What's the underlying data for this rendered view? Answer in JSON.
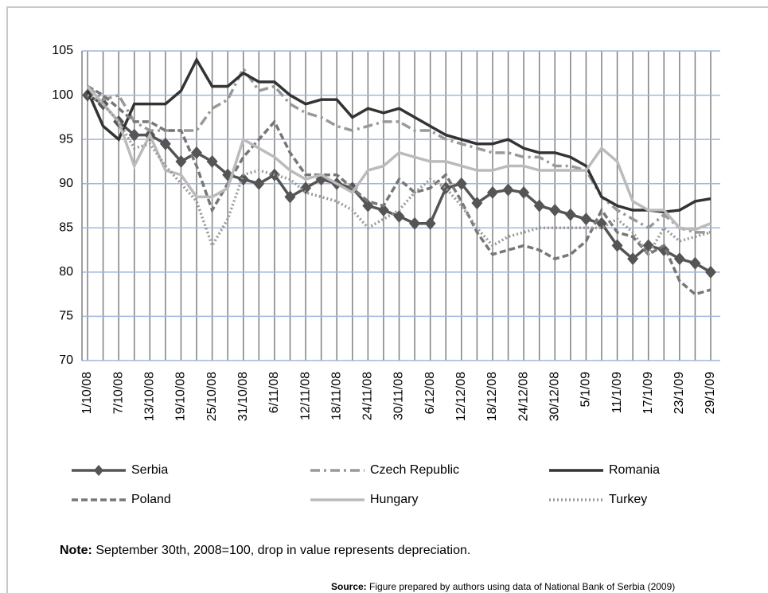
{
  "chart_data": {
    "type": "line",
    "categories": [
      "1/10/08",
      null,
      "7/10/08",
      null,
      "13/10/08",
      null,
      "19/10/08",
      null,
      "25/10/08",
      null,
      "31/10/08",
      null,
      "6/11/08",
      null,
      "12/11/08",
      null,
      "18/11/08",
      null,
      "24/11/08",
      null,
      "30/11/08",
      null,
      "6/12/08",
      null,
      "12/12/08",
      null,
      "18/12/08",
      null,
      "24/12/08",
      null,
      "30/12/08",
      null,
      "5/1/09",
      null,
      "11/1/09",
      null,
      "17/1/09",
      null,
      "23/1/09",
      null,
      "29/1/09"
    ],
    "series": [
      {
        "name": "Serbia",
        "color": "#555555",
        "line_style": "solid",
        "marker": "diamond",
        "values": [
          100,
          99,
          97,
          95.5,
          95.5,
          94.5,
          92.5,
          93.5,
          92.5,
          91,
          90.5,
          90,
          91,
          88.5,
          89.5,
          90.5,
          90,
          89.5,
          87.5,
          87,
          86.3,
          85.5,
          85.5,
          89.5,
          90,
          87.8,
          89,
          89.3,
          89,
          87.5,
          87,
          86.5,
          86,
          85.5,
          83,
          81.5,
          83,
          82.5,
          81.5,
          81,
          80
        ]
      },
      {
        "name": "Czech Republic",
        "color": "#999999",
        "line_style": "dash-dot",
        "marker": "none",
        "values": [
          101,
          99.5,
          100,
          97,
          96,
          96,
          96,
          96,
          98.5,
          99.5,
          103,
          100.5,
          101,
          99,
          98,
          97.5,
          96.5,
          96,
          96.5,
          97,
          97,
          96,
          96,
          95,
          94.5,
          94,
          93.5,
          93.5,
          93,
          93,
          92,
          92,
          91.5,
          88.5,
          87,
          86,
          85,
          86.5,
          85,
          84.5,
          84.5
        ]
      },
      {
        "name": "Romania",
        "color": "#333333",
        "line_style": "solid",
        "marker": "none",
        "values": [
          100.5,
          96.5,
          95,
          99,
          99,
          99,
          100.5,
          104,
          101,
          101,
          102.5,
          101.5,
          101.5,
          100,
          99,
          99.5,
          99.5,
          97.5,
          98.5,
          98,
          98.5,
          97.5,
          96.5,
          95.5,
          95,
          94.5,
          94.5,
          95,
          94,
          93.5,
          93.5,
          93,
          92,
          88.5,
          87.5,
          87,
          87,
          86.8,
          87,
          88,
          88.3
        ]
      },
      {
        "name": "Poland",
        "color": "#777777",
        "line_style": "dashed",
        "marker": "none",
        "values": [
          101,
          100,
          98.5,
          97,
          97,
          96,
          96,
          92,
          87,
          90,
          93,
          95,
          97,
          93.5,
          91,
          91,
          91,
          89.5,
          88,
          87.5,
          90.5,
          89,
          89.5,
          91,
          88,
          84.5,
          82,
          82.5,
          83,
          82.5,
          81.5,
          82,
          83.5,
          87,
          84.5,
          84,
          82,
          83,
          79,
          77.5,
          78
        ]
      },
      {
        "name": "Hungary",
        "color": "#bbbbbb",
        "line_style": "solid",
        "marker": "none",
        "values": [
          101,
          99,
          97,
          92,
          95.5,
          91.5,
          91,
          88.5,
          88.5,
          89.5,
          95,
          94,
          93,
          91.5,
          90.5,
          91,
          90,
          89,
          91.5,
          92,
          93.5,
          93,
          92.5,
          92.5,
          92,
          91.5,
          91.5,
          92,
          92,
          91.5,
          91.5,
          91.5,
          91.5,
          94,
          92.5,
          88,
          87,
          87,
          85,
          84.8,
          85.5
        ]
      },
      {
        "name": "Turkey",
        "color": "#999999",
        "line_style": "dotted",
        "marker": "none",
        "values": [
          100,
          99,
          97,
          94,
          94.5,
          92,
          90,
          88,
          83,
          86,
          91,
          91.5,
          91,
          90.5,
          89,
          88.5,
          88,
          87,
          85,
          86,
          87,
          89,
          90.5,
          89.5,
          87.5,
          85,
          83,
          84,
          84.5,
          85,
          85,
          85,
          85,
          85,
          86,
          84.5,
          82,
          85,
          83.5,
          84,
          84.5
        ]
      }
    ],
    "ylim": [
      70,
      105
    ],
    "yticks": [
      70,
      75,
      80,
      85,
      90,
      95,
      100,
      105
    ],
    "grid": true,
    "legend": "bottom"
  },
  "note": {
    "label": "Note:",
    "text": " September 30th, 2008=100, drop in value represents depreciation."
  },
  "source": {
    "label": "Source:",
    "text": " Figure prepared by authors using data of National Bank of Serbia (2009)"
  }
}
